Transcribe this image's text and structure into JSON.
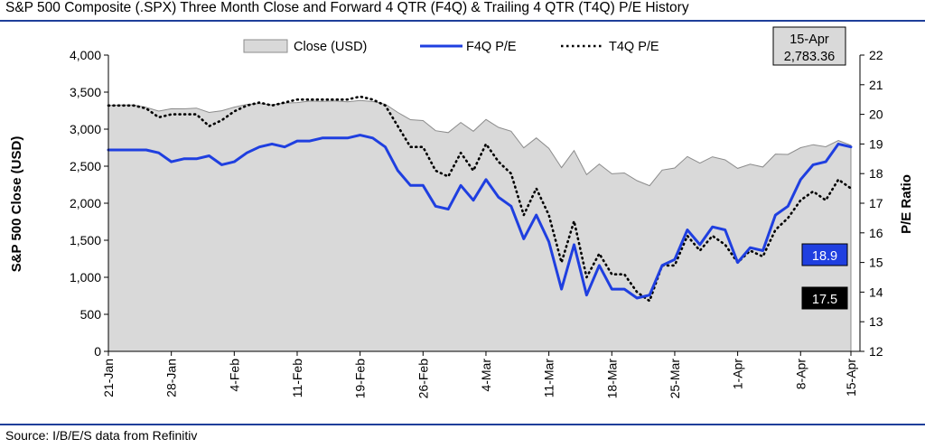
{
  "header": {
    "title": "S&P 500 Composite (.SPX) Three Month Close and Forward 4 QTR (F4Q) & Trailing 4 QTR (T4Q) P/E History",
    "source": "Source: I/B/E/S data from Refinitiv"
  },
  "colors": {
    "rule": "#1f3f9a",
    "area_fill": "#d9d9d9",
    "area_stroke": "#8c8c8c",
    "f4q_line": "#1f3fe0",
    "t4q_line": "#000000",
    "f4q_label_bg": "#1f3fe0",
    "t4q_label_bg": "#000000",
    "date_box_bg": "#d9d9d9"
  },
  "chart_data": {
    "type": "line",
    "legend": [
      {
        "key": "close",
        "label": "Close (USD)",
        "style": "area"
      },
      {
        "key": "f4q",
        "label": "F4Q P/E",
        "style": "solid"
      },
      {
        "key": "t4q",
        "label": "T4Q P/E",
        "style": "dotted"
      }
    ],
    "legend_position": "top",
    "left_axis": {
      "label": "S&P 500 Close (USD)",
      "min": 0,
      "max": 4000,
      "ticks": [
        "0",
        "500",
        "1,000",
        "1,500",
        "2,000",
        "2,500",
        "3,000",
        "3,500",
        "4,000"
      ]
    },
    "right_axis": {
      "label": "P/E Ratio",
      "min": 12,
      "max": 22,
      "ticks": [
        "12",
        "13",
        "14",
        "15",
        "16",
        "17",
        "18",
        "19",
        "20",
        "21",
        "22"
      ]
    },
    "x_tick_labels": [
      "21-Jan",
      "28-Jan",
      "4-Feb",
      "11-Feb",
      "19-Feb",
      "26-Feb",
      "4-Mar",
      "11-Mar",
      "18-Mar",
      "25-Mar",
      "1-Apr",
      "8-Apr",
      "15-Apr"
    ],
    "dates": [
      "21-Jan",
      "22-Jan",
      "23-Jan",
      "24-Jan",
      "27-Jan",
      "28-Jan",
      "29-Jan",
      "30-Jan",
      "31-Jan",
      "3-Feb",
      "4-Feb",
      "5-Feb",
      "6-Feb",
      "7-Feb",
      "10-Feb",
      "11-Feb",
      "12-Feb",
      "13-Feb",
      "14-Feb",
      "18-Feb",
      "19-Feb",
      "20-Feb",
      "21-Feb",
      "24-Feb",
      "25-Feb",
      "26-Feb",
      "27-Feb",
      "28-Feb",
      "2-Mar",
      "3-Mar",
      "4-Mar",
      "5-Mar",
      "6-Mar",
      "9-Mar",
      "10-Mar",
      "11-Mar",
      "12-Mar",
      "13-Mar",
      "16-Mar",
      "17-Mar",
      "18-Mar",
      "19-Mar",
      "20-Mar",
      "23-Mar",
      "24-Mar",
      "25-Mar",
      "26-Mar",
      "27-Mar",
      "30-Mar",
      "31-Mar",
      "1-Apr",
      "2-Apr",
      "3-Apr",
      "6-Apr",
      "7-Apr",
      "8-Apr",
      "9-Apr",
      "13-Apr",
      "14-Apr",
      "15-Apr"
    ],
    "x_tick_indices": [
      0,
      5,
      10,
      15,
      20,
      25,
      30,
      35,
      40,
      45,
      50,
      55,
      59
    ],
    "series": [
      {
        "key": "close",
        "name": "Close (USD)",
        "axis": "left",
        "values": [
          3321,
          3325,
          3325,
          3295,
          3244,
          3276,
          3274,
          3284,
          3226,
          3249,
          3298,
          3334,
          3346,
          3328,
          3352,
          3358,
          3379,
          3374,
          3380,
          3370,
          3386,
          3373,
          3338,
          3226,
          3128,
          3116,
          2979,
          2954,
          3090,
          2972,
          3130,
          3024,
          2972,
          2747,
          2882,
          2741,
          2481,
          2711,
          2386,
          2529,
          2398,
          2409,
          2305,
          2237,
          2447,
          2476,
          2630,
          2541,
          2627,
          2585,
          2471,
          2527,
          2489,
          2664,
          2659,
          2750,
          2790,
          2762,
          2846,
          2783
        ]
      },
      {
        "key": "f4q",
        "name": "F4Q P/E",
        "axis": "right",
        "values": [
          18.8,
          18.8,
          18.8,
          18.8,
          18.7,
          18.4,
          18.5,
          18.5,
          18.6,
          18.3,
          18.4,
          18.7,
          18.9,
          19.0,
          18.9,
          19.1,
          19.1,
          19.2,
          19.2,
          19.2,
          19.3,
          19.2,
          18.9,
          18.1,
          17.6,
          17.6,
          16.9,
          16.8,
          17.6,
          17.1,
          17.8,
          17.2,
          16.9,
          15.8,
          16.6,
          15.7,
          14.1,
          15.6,
          13.9,
          14.9,
          14.1,
          14.1,
          13.8,
          13.9,
          14.9,
          15.1,
          16.1,
          15.6,
          16.2,
          16.1,
          15.0,
          15.5,
          15.4,
          16.6,
          16.9,
          17.8,
          18.3,
          18.4,
          19.0,
          18.9
        ]
      },
      {
        "key": "t4q",
        "name": "T4Q P/E",
        "axis": "right",
        "values": [
          20.3,
          20.3,
          20.3,
          20.2,
          19.9,
          20.0,
          20.0,
          20.0,
          19.6,
          19.8,
          20.1,
          20.3,
          20.4,
          20.3,
          20.4,
          20.5,
          20.5,
          20.5,
          20.5,
          20.5,
          20.6,
          20.5,
          20.3,
          19.6,
          18.9,
          18.9,
          18.1,
          17.9,
          18.7,
          18.1,
          19.0,
          18.4,
          18.0,
          16.6,
          17.5,
          16.6,
          15.0,
          16.4,
          14.5,
          15.3,
          14.6,
          14.6,
          14.0,
          13.7,
          14.9,
          14.9,
          15.9,
          15.4,
          15.9,
          15.6,
          15.0,
          15.4,
          15.2,
          16.1,
          16.5,
          17.1,
          17.4,
          17.1,
          17.8,
          17.5
        ]
      }
    ],
    "annotations": {
      "date_box": {
        "date": "15-Apr",
        "value": "2,783.36"
      },
      "f4q_last": "18.9",
      "t4q_last": "17.5"
    },
    "grid": false
  }
}
